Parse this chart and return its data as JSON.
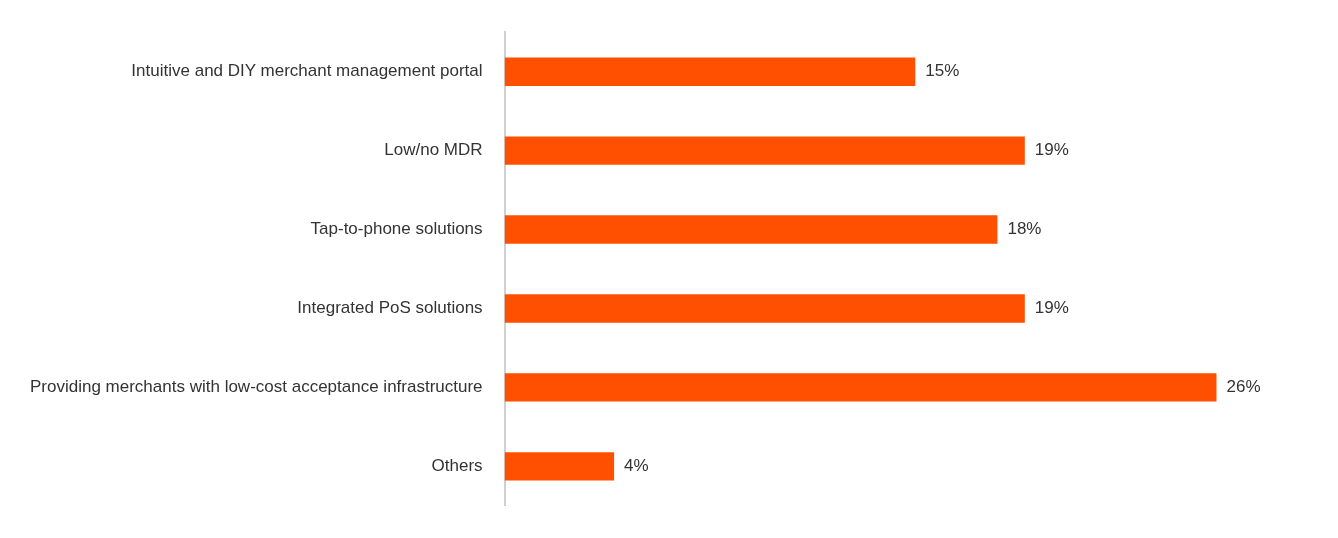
{
  "chart_data": {
    "type": "bar",
    "orientation": "horizontal",
    "categories": [
      "Intuitive and DIY merchant management portal",
      "Low/no MDR",
      "Tap-to-phone solutions",
      "Integrated PoS solutions",
      "Providing merchants with low-cost acceptance infrastructure",
      "Others"
    ],
    "values": [
      15,
      19,
      18,
      19,
      26,
      4
    ],
    "value_labels": [
      "15%",
      "19%",
      "18%",
      "19%",
      "26%",
      "4%"
    ],
    "color": "#fe5000",
    "grid": false,
    "legend": false,
    "tick_labels": "y"
  }
}
